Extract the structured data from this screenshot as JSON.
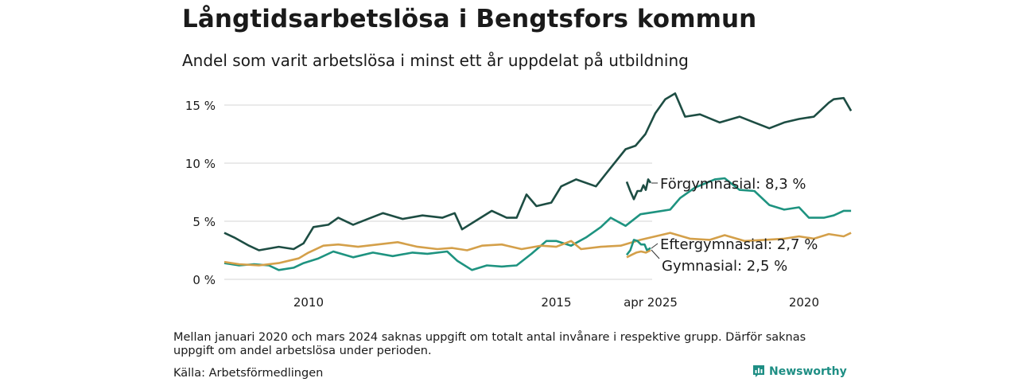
{
  "title": "Långtidsarbetslösa i Bengtsfors kommun",
  "subtitle": "Andel som varit arbetslösa i minst ett år uppdelat på utbildning",
  "note": "Mellan januari 2020 och mars 2024 saknas uppgift om totalt antal invånare i respektive grupp. Därför saknas uppgift om andel arbetslösa under perioden.",
  "source": "Källa: Arbetsförmedlingen",
  "brand": "Newsworthy",
  "colors": {
    "brand": "#1e8e84"
  },
  "chart_data": {
    "type": "line",
    "y_tick_labels": [
      "0 %",
      "5 %",
      "10 %",
      "15 %"
    ],
    "y_ticks": [
      0,
      5,
      10,
      15
    ],
    "ylim": [
      0,
      16.5
    ],
    "grid": true,
    "x_tick_labels": [
      "2010",
      "2015",
      "2020",
      "apr 2025"
    ],
    "x_ticks": [
      2010,
      2015,
      2020,
      2025.25
    ],
    "xlim": [
      2008.2,
      2025.4
    ],
    "series": [
      {
        "label": "Förgymnasial: 8,3 %",
        "color": "#1d4d43",
        "points": [
          [
            2008.3,
            4.0
          ],
          [
            2008.5,
            3.6
          ],
          [
            2008.8,
            2.9
          ],
          [
            2009.0,
            2.5
          ],
          [
            2009.4,
            2.8
          ],
          [
            2009.7,
            2.6
          ],
          [
            2009.9,
            3.1
          ],
          [
            2010.1,
            4.5
          ],
          [
            2010.4,
            4.7
          ],
          [
            2010.6,
            5.3
          ],
          [
            2010.9,
            4.7
          ],
          [
            2011.2,
            5.2
          ],
          [
            2011.5,
            5.7
          ],
          [
            2011.9,
            5.2
          ],
          [
            2012.3,
            5.5
          ],
          [
            2012.7,
            5.3
          ],
          [
            2012.95,
            5.7
          ],
          [
            2013.1,
            4.3
          ],
          [
            2013.4,
            5.1
          ],
          [
            2013.7,
            5.9
          ],
          [
            2014.0,
            5.3
          ],
          [
            2014.2,
            5.3
          ],
          [
            2014.4,
            7.3
          ],
          [
            2014.6,
            6.3
          ],
          [
            2014.9,
            6.6
          ],
          [
            2015.1,
            8.0
          ],
          [
            2015.4,
            8.6
          ],
          [
            2015.8,
            8.0
          ],
          [
            2016.1,
            9.6
          ],
          [
            2016.4,
            11.2
          ],
          [
            2016.6,
            11.5
          ],
          [
            2016.8,
            12.5
          ],
          [
            2017.0,
            14.3
          ],
          [
            2017.2,
            15.5
          ],
          [
            2017.4,
            16.0
          ],
          [
            2017.6,
            14.0
          ],
          [
            2017.9,
            14.2
          ],
          [
            2018.3,
            13.5
          ],
          [
            2018.7,
            14.0
          ],
          [
            2019.0,
            13.5
          ],
          [
            2019.3,
            13.0
          ],
          [
            2019.6,
            13.5
          ],
          [
            2019.9,
            13.8
          ],
          [
            2020.2,
            14.0
          ],
          [
            2020.5,
            15.2
          ],
          [
            2020.6,
            15.5
          ],
          [
            2020.8,
            15.6
          ],
          [
            2020.95,
            14.5
          ]
        ]
      },
      {
        "label": "Eftergymnasial: 2,7 %",
        "color": "#1e9380",
        "points": [
          [
            2008.3,
            1.4
          ],
          [
            2008.6,
            1.2
          ],
          [
            2008.9,
            1.3
          ],
          [
            2009.2,
            1.2
          ],
          [
            2009.4,
            0.8
          ],
          [
            2009.7,
            1.0
          ],
          [
            2009.9,
            1.4
          ],
          [
            2010.2,
            1.8
          ],
          [
            2010.5,
            2.4
          ],
          [
            2010.9,
            1.9
          ],
          [
            2011.3,
            2.3
          ],
          [
            2011.7,
            2.0
          ],
          [
            2012.1,
            2.3
          ],
          [
            2012.4,
            2.2
          ],
          [
            2012.8,
            2.4
          ],
          [
            2013.0,
            1.6
          ],
          [
            2013.3,
            0.8
          ],
          [
            2013.6,
            1.2
          ],
          [
            2013.9,
            1.1
          ],
          [
            2014.2,
            1.2
          ],
          [
            2014.5,
            2.2
          ],
          [
            2014.8,
            3.3
          ],
          [
            2015.0,
            3.3
          ],
          [
            2015.3,
            2.9
          ],
          [
            2015.6,
            3.6
          ],
          [
            2015.9,
            4.5
          ],
          [
            2016.1,
            5.3
          ],
          [
            2016.4,
            4.6
          ],
          [
            2016.7,
            5.6
          ],
          [
            2017.0,
            5.8
          ],
          [
            2017.3,
            6.0
          ],
          [
            2017.5,
            7.0
          ],
          [
            2017.8,
            7.9
          ],
          [
            2018.2,
            8.6
          ],
          [
            2018.4,
            8.7
          ],
          [
            2018.7,
            7.7
          ],
          [
            2019.0,
            7.6
          ],
          [
            2019.3,
            6.4
          ],
          [
            2019.6,
            6.0
          ],
          [
            2019.9,
            6.2
          ],
          [
            2020.1,
            5.3
          ],
          [
            2020.4,
            5.3
          ],
          [
            2020.6,
            5.5
          ],
          [
            2020.8,
            5.9
          ],
          [
            2020.95,
            5.9
          ]
        ]
      },
      {
        "label": "Gymnasial: 2,5 %",
        "color": "#d4a04a",
        "points": [
          [
            2008.3,
            1.5
          ],
          [
            2008.6,
            1.3
          ],
          [
            2009.0,
            1.2
          ],
          [
            2009.4,
            1.4
          ],
          [
            2009.8,
            1.8
          ],
          [
            2010.0,
            2.3
          ],
          [
            2010.3,
            2.9
          ],
          [
            2010.6,
            3.0
          ],
          [
            2011.0,
            2.8
          ],
          [
            2011.4,
            3.0
          ],
          [
            2011.8,
            3.2
          ],
          [
            2012.2,
            2.8
          ],
          [
            2012.6,
            2.6
          ],
          [
            2012.9,
            2.7
          ],
          [
            2013.2,
            2.5
          ],
          [
            2013.5,
            2.9
          ],
          [
            2013.9,
            3.0
          ],
          [
            2014.3,
            2.6
          ],
          [
            2014.7,
            2.9
          ],
          [
            2015.0,
            2.8
          ],
          [
            2015.3,
            3.3
          ],
          [
            2015.5,
            2.6
          ],
          [
            2015.9,
            2.8
          ],
          [
            2016.3,
            2.9
          ],
          [
            2016.7,
            3.4
          ],
          [
            2017.0,
            3.7
          ],
          [
            2017.3,
            4.0
          ],
          [
            2017.7,
            3.5
          ],
          [
            2018.1,
            3.4
          ],
          [
            2018.4,
            3.8
          ],
          [
            2018.8,
            3.3
          ],
          [
            2019.2,
            3.4
          ],
          [
            2019.6,
            3.5
          ],
          [
            2019.9,
            3.7
          ],
          [
            2020.2,
            3.5
          ],
          [
            2020.5,
            3.9
          ],
          [
            2020.8,
            3.7
          ],
          [
            2020.95,
            4.0
          ]
        ]
      }
    ],
    "recent": [
      {
        "series": "Förgymnasial: 8,3 %",
        "points": [
          [
            2024.25,
            8.4
          ],
          [
            2024.4,
            7.6
          ],
          [
            2024.55,
            6.9
          ],
          [
            2024.7,
            7.6
          ],
          [
            2024.85,
            7.6
          ],
          [
            2024.95,
            8.1
          ],
          [
            2025.05,
            7.7
          ],
          [
            2025.15,
            8.6
          ],
          [
            2025.25,
            8.3
          ]
        ]
      },
      {
        "series": "Eftergymnasial: 2,7 %",
        "points": [
          [
            2024.25,
            2.1
          ],
          [
            2024.4,
            2.5
          ],
          [
            2024.55,
            3.4
          ],
          [
            2024.7,
            3.3
          ],
          [
            2024.85,
            3.0
          ],
          [
            2025.0,
            3.0
          ],
          [
            2025.1,
            2.5
          ],
          [
            2025.25,
            2.7
          ]
        ]
      },
      {
        "series": "Gymnasial: 2,5 %",
        "points": [
          [
            2024.25,
            1.9
          ],
          [
            2024.45,
            2.1
          ],
          [
            2024.65,
            2.3
          ],
          [
            2024.85,
            2.4
          ],
          [
            2025.05,
            2.3
          ],
          [
            2025.25,
            2.5
          ]
        ]
      }
    ]
  }
}
